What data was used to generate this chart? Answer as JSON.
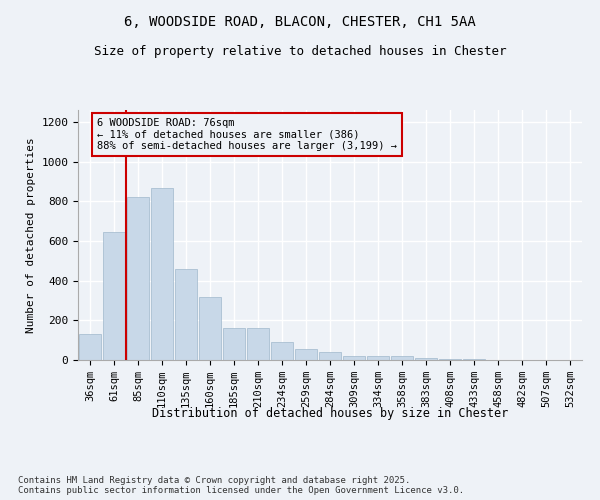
{
  "title_line1": "6, WOODSIDE ROAD, BLACON, CHESTER, CH1 5AA",
  "title_line2": "Size of property relative to detached houses in Chester",
  "xlabel": "Distribution of detached houses by size in Chester",
  "ylabel": "Number of detached properties",
  "categories": [
    "36sqm",
    "61sqm",
    "85sqm",
    "110sqm",
    "135sqm",
    "160sqm",
    "185sqm",
    "210sqm",
    "234sqm",
    "259sqm",
    "284sqm",
    "309sqm",
    "334sqm",
    "358sqm",
    "383sqm",
    "408sqm",
    "433sqm",
    "458sqm",
    "482sqm",
    "507sqm",
    "532sqm"
  ],
  "values": [
    130,
    645,
    820,
    865,
    460,
    320,
    160,
    160,
    90,
    55,
    42,
    20,
    18,
    18,
    12,
    4,
    3,
    2,
    1,
    1,
    0
  ],
  "bar_color": "#c8d8e8",
  "bar_edge_color": "#a0b8cc",
  "vline_x": 1.5,
  "vline_color": "#cc0000",
  "annotation_text": "6 WOODSIDE ROAD: 76sqm\n← 11% of detached houses are smaller (386)\n88% of semi-detached houses are larger (3,199) →",
  "ylim": [
    0,
    1260
  ],
  "yticks": [
    0,
    200,
    400,
    600,
    800,
    1000,
    1200
  ],
  "footnote": "Contains HM Land Registry data © Crown copyright and database right 2025.\nContains public sector information licensed under the Open Government Licence v3.0.",
  "bg_color": "#eef2f7",
  "grid_color": "#ffffff"
}
